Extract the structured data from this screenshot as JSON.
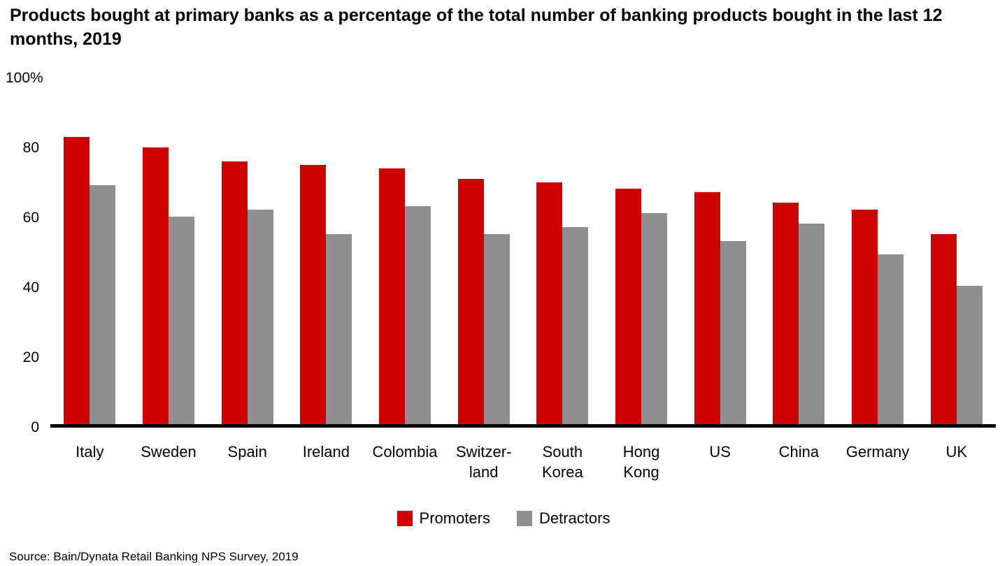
{
  "title": "Products bought at primary banks as a percentage of the total number of banking products bought in the last 12 months, 2019",
  "y_axis_top_label": "100%",
  "source": "Source: Bain/Dynata Retail Banking NPS Survey, 2019",
  "colors": {
    "promoters": "#cc0000",
    "detractors": "#8f8f8f",
    "axis": "#000000"
  },
  "chart_data": {
    "type": "bar",
    "title": "Products bought at primary banks as a percentage of the total number of banking products bought in the last 12 months, 2019",
    "categories": [
      "Italy",
      "Sweden",
      "Spain",
      "Ireland",
      "Colombia",
      "Switzer-\nland",
      "South\nKorea",
      "Hong\nKong",
      "US",
      "China",
      "Germany",
      "UK"
    ],
    "series": [
      {
        "name": "Promoters",
        "color": "#cc0000",
        "values": [
          83,
          80,
          76,
          75,
          74,
          71,
          70,
          68,
          67,
          64,
          62,
          55
        ]
      },
      {
        "name": "Detractors",
        "color": "#8f8f8f",
        "values": [
          69,
          60,
          62,
          55,
          63,
          55,
          57,
          61,
          53,
          58,
          49,
          40
        ]
      }
    ],
    "xlabel": "",
    "ylabel": "",
    "ylim": [
      0,
      100
    ],
    "yticks": [
      0,
      20,
      40,
      60,
      80
    ],
    "grid": false,
    "legend_position": "bottom"
  }
}
